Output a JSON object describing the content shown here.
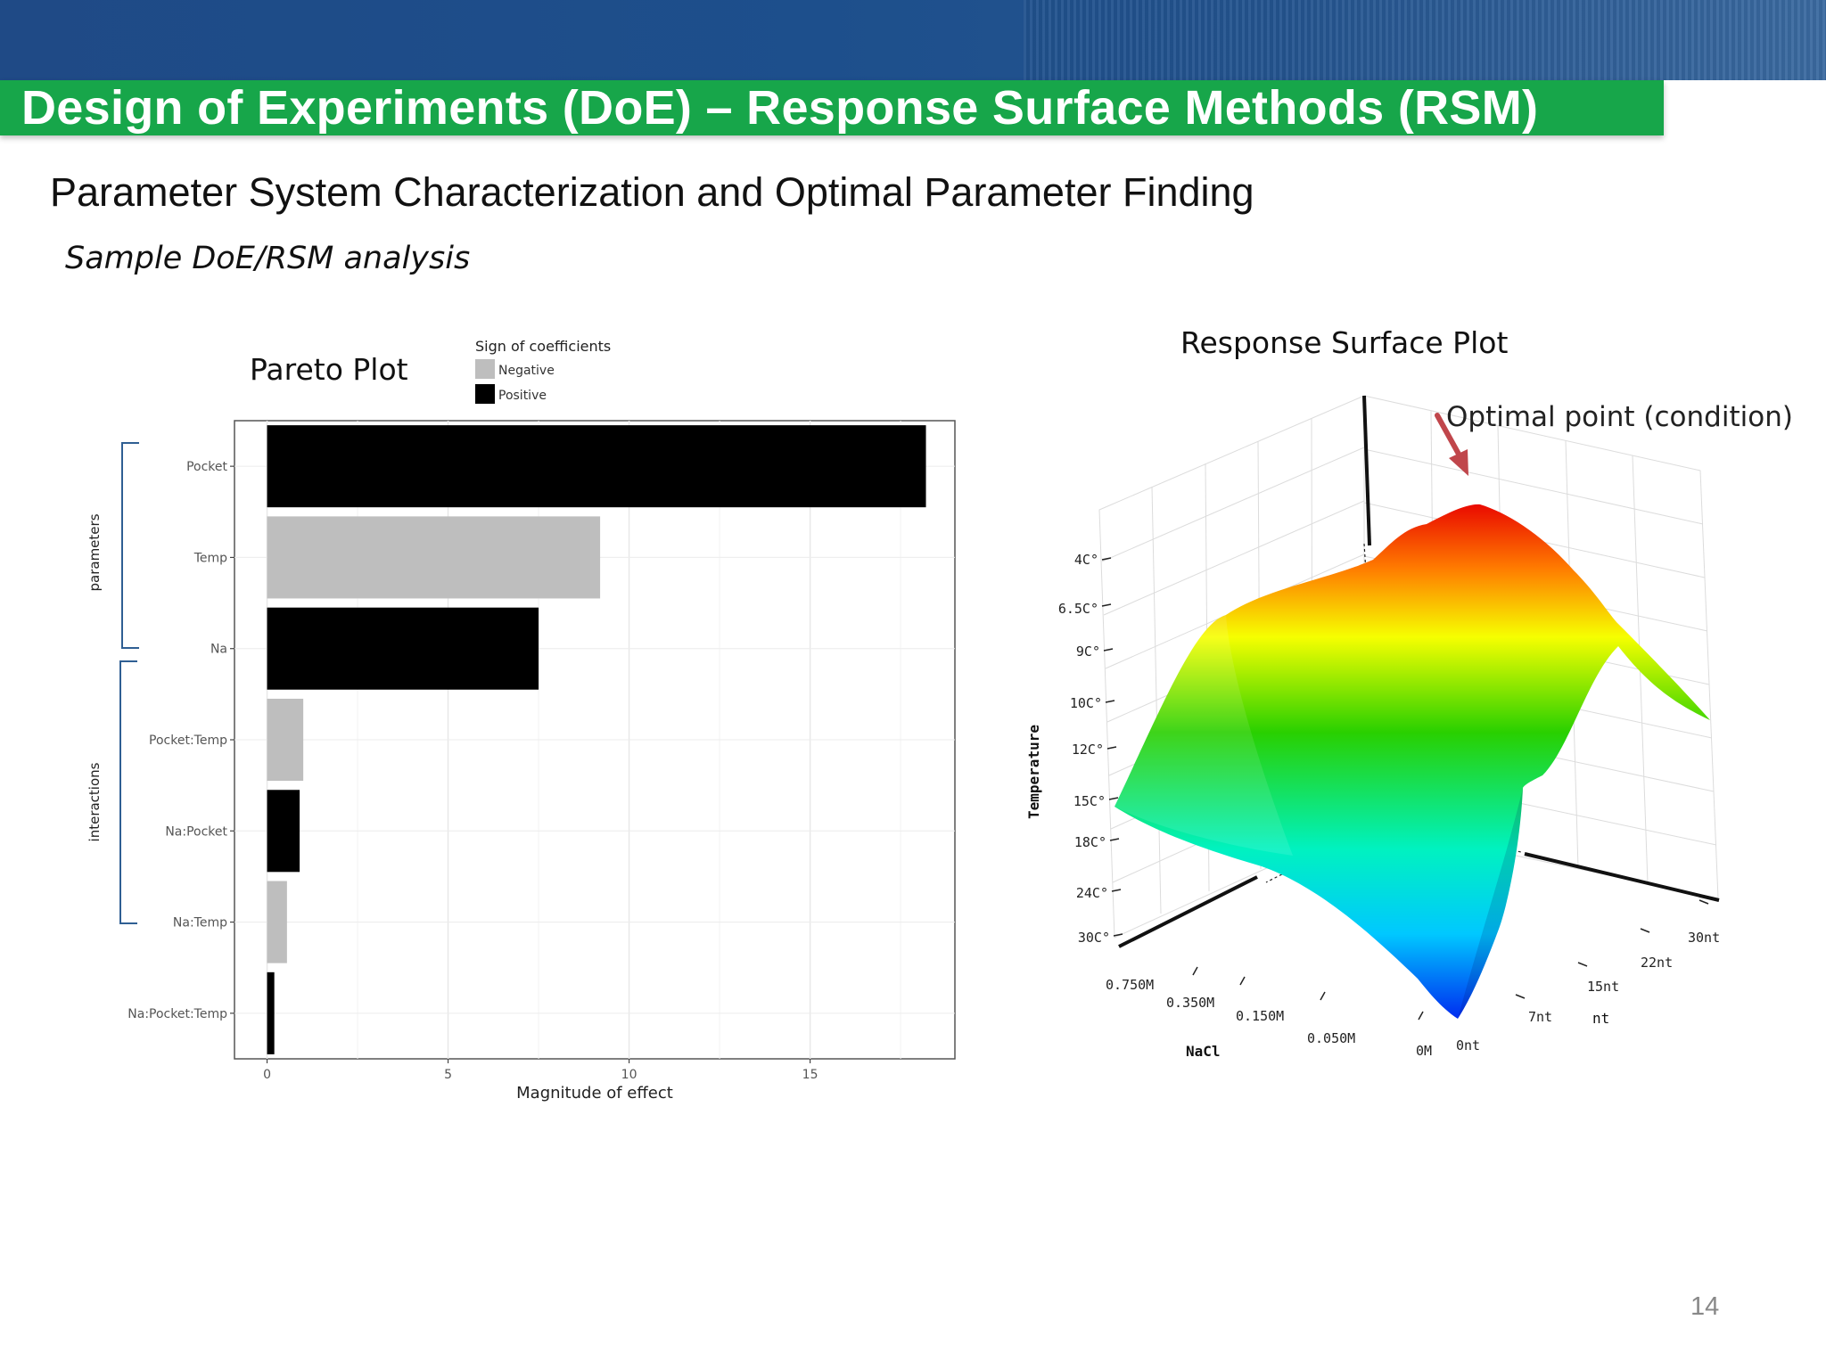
{
  "slide": {
    "title": "Design of Experiments (DoE) – Response Surface Methods (RSM)",
    "subtitle": "Parameter System Characterization and Optimal Parameter Finding",
    "caption": "Sample DoE/RSM analysis",
    "page_number": "14"
  },
  "pareto": {
    "label": "Pareto Plot",
    "group_labels": [
      "parameters",
      "interactions"
    ]
  },
  "rsm": {
    "label": "Response Surface Plot",
    "annotation": "Optimal point (condition)",
    "z_axis_label": "Temperature",
    "z_ticks": [
      "4C°",
      "6.5C°",
      "9C°",
      "10C°",
      "12C°",
      "15C°",
      "18C°",
      "24C°",
      "30C°"
    ],
    "x_axis_label": "NaCl",
    "x_ticks": [
      "0.750M",
      "0.350M",
      "0.150M",
      "0.050M",
      "0M"
    ],
    "y_axis_label": "nt",
    "y_ticks": [
      "0nt",
      "7nt",
      "15nt",
      "22nt",
      "30nt"
    ],
    "colors": {
      "annotation_arrow": "#c0464b"
    }
  },
  "chart_data": {
    "type": "bar",
    "orientation": "horizontal",
    "categories": [
      "Pocket",
      "Temp",
      "Na",
      "Pocket:Temp",
      "Na:Pocket",
      "Na:Temp",
      "Na:Pocket:Temp"
    ],
    "values": [
      18.2,
      9.2,
      7.5,
      1.0,
      0.9,
      0.55,
      0.2
    ],
    "signs": [
      "Positive",
      "Negative",
      "Positive",
      "Negative",
      "Positive",
      "Negative",
      "Positive"
    ],
    "xlabel": "Magnitude of effect",
    "ylabel": "",
    "xlim": [
      -0.9,
      19
    ],
    "x_ticks": [
      0,
      5,
      10,
      15
    ],
    "grid": true,
    "legend": {
      "title": "Sign of coefficients",
      "entries": [
        {
          "name": "Negative",
          "color": "#bebebe"
        },
        {
          "name": "Positive",
          "color": "#000000"
        }
      ],
      "placement": "top"
    }
  }
}
